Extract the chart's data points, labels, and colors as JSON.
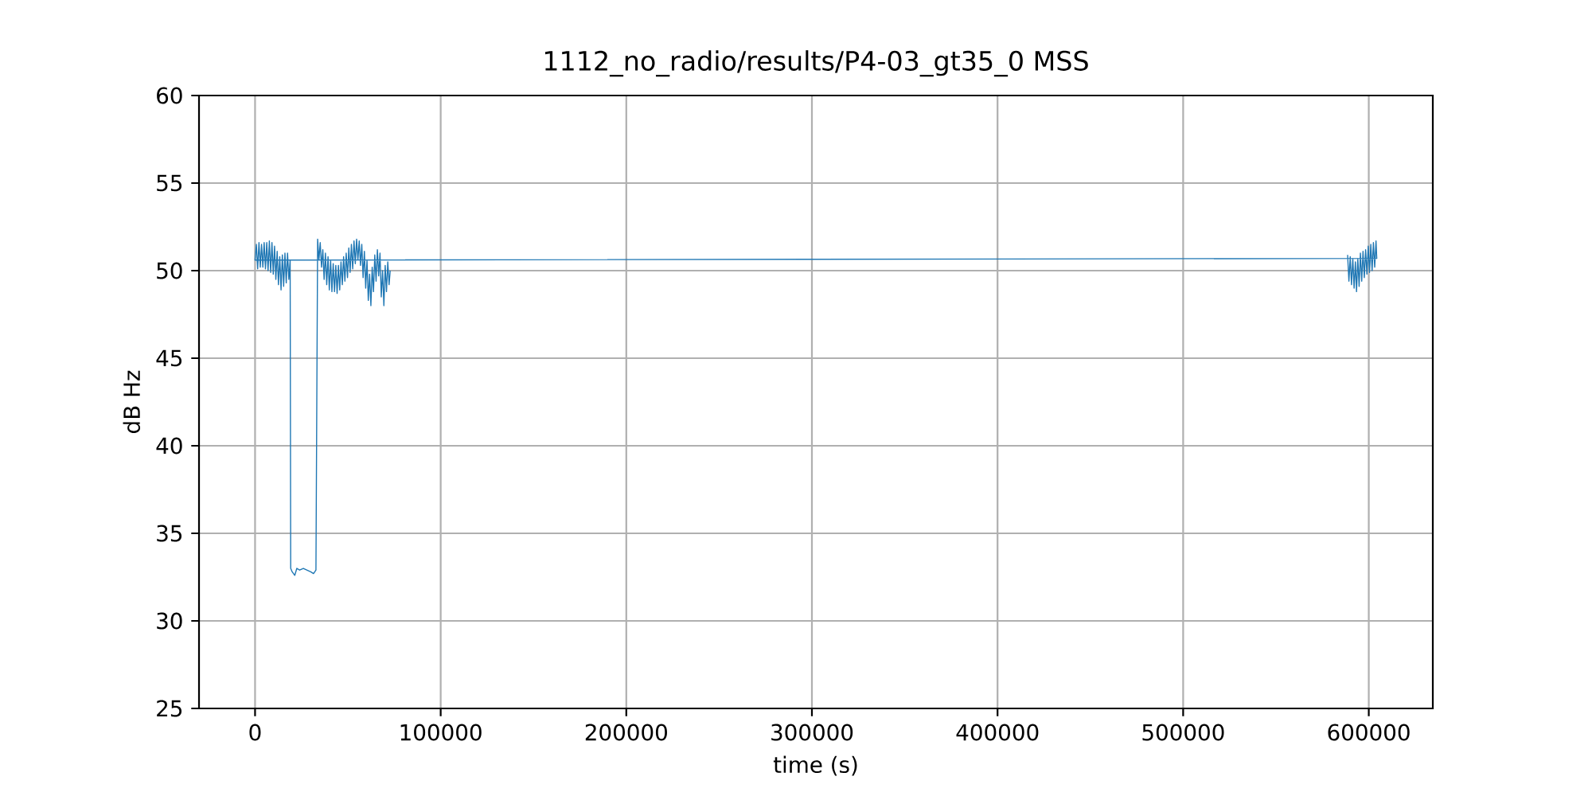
{
  "chart_data": {
    "type": "line",
    "title": "1112_no_radio/results/P4-03_gt35_0 MSS",
    "xlabel": "time (s)",
    "ylabel": "dB Hz",
    "color": "#1f77b4",
    "line_style": "solid",
    "grid": true,
    "xlim": [
      -30200,
      634500
    ],
    "ylim": [
      25,
      60
    ],
    "xticks": [
      0,
      100000,
      200000,
      300000,
      400000,
      500000,
      600000
    ],
    "yticks": [
      25,
      30,
      35,
      40,
      45,
      50,
      55,
      60
    ],
    "x": [
      588600,
      589300,
      590000,
      590700,
      591400,
      592100,
      592800,
      593400,
      594100,
      594800,
      595500,
      596200,
      596900,
      597600,
      598300,
      599000,
      599700,
      600400,
      601100,
      601800,
      602500,
      603200,
      603900,
      604300,
      0,
      700,
      1400,
      2100,
      2800,
      3500,
      4200,
      4900,
      5600,
      6300,
      7000,
      7700,
      8400,
      9100,
      9800,
      10500,
      11200,
      11900,
      12600,
      13300,
      14000,
      14700,
      15400,
      16100,
      16800,
      17500,
      18200,
      18900,
      19200,
      20000,
      21400,
      22500,
      24000,
      26000,
      28000,
      30000,
      31500,
      32800,
      33700,
      34400,
      35100,
      35800,
      36500,
      37200,
      37900,
      38600,
      39300,
      40000,
      40700,
      41400,
      42100,
      42800,
      43500,
      44200,
      44900,
      45600,
      46300,
      47000,
      47700,
      48400,
      49100,
      49800,
      50500,
      51200,
      51900,
      52600,
      53300,
      54000,
      54700,
      55400,
      56100,
      56800,
      57500,
      58200,
      58900,
      59600,
      60300,
      61000,
      61700,
      62400,
      63100,
      63800,
      64500,
      65200,
      65900,
      66600,
      67300,
      68000,
      68700,
      69400,
      70100,
      70800,
      71500,
      72200,
      72800
    ],
    "values": [
      50.9,
      49.4,
      50.8,
      49.2,
      50.7,
      49.0,
      50.5,
      48.8,
      50.7,
      49.1,
      51.0,
      49.4,
      51.1,
      49.6,
      51.2,
      49.8,
      51.4,
      49.9,
      51.5,
      50.0,
      51.6,
      50.2,
      51.7,
      50.7,
      50.6,
      51.5,
      50.1,
      51.6,
      50.2,
      51.5,
      50.2,
      51.6,
      50.1,
      51.6,
      50.0,
      51.7,
      49.9,
      51.6,
      49.8,
      51.4,
      49.5,
      51.1,
      49.2,
      50.8,
      48.9,
      50.9,
      49.1,
      51.0,
      49.3,
      51.0,
      49.5,
      50.6,
      33.0,
      32.8,
      32.6,
      33.0,
      32.9,
      33.0,
      32.9,
      32.8,
      32.7,
      32.9,
      51.8,
      50.6,
      51.6,
      50.2,
      51.2,
      49.5,
      51.0,
      49.2,
      50.8,
      48.9,
      50.6,
      48.8,
      50.4,
      48.8,
      50.3,
      48.7,
      50.3,
      48.9,
      50.5,
      49.2,
      50.8,
      49.4,
      51.0,
      49.6,
      51.3,
      49.9,
      51.5,
      50.1,
      51.7,
      50.4,
      51.8,
      50.6,
      51.7,
      50.3,
      51.5,
      49.6,
      51.1,
      49.0,
      50.6,
      48.3,
      49.8,
      48.0,
      50.2,
      48.8,
      50.9,
      49.4,
      51.2,
      49.7,
      51.0,
      48.5,
      50.0,
      48.0,
      50.3,
      48.8,
      50.5,
      49.2,
      50.0
    ]
  }
}
